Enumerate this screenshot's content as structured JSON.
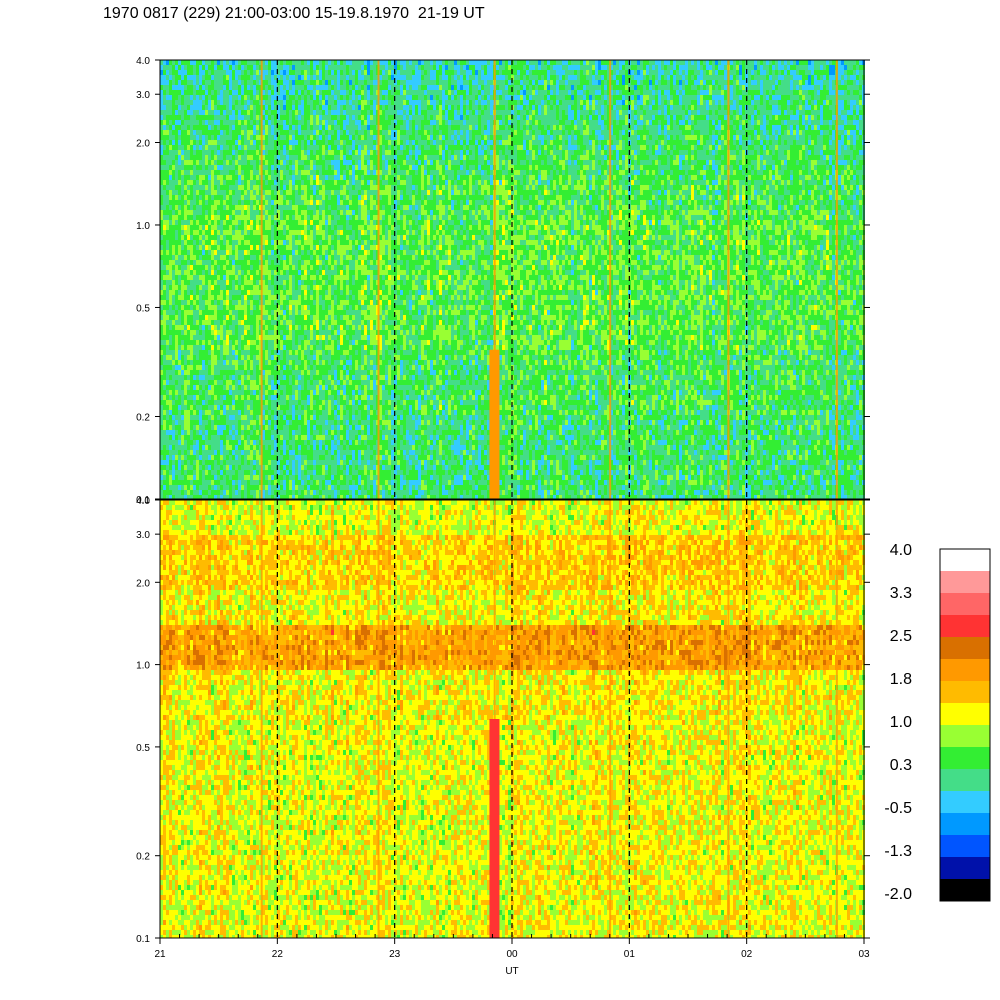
{
  "title": "1970 0817 (229) 21:00-03:00 15-19.8.1970  21-19 UT",
  "chart_data": {
    "type": "heatmap",
    "xlabel": "UT",
    "x_ticks": [
      "21",
      "22",
      "23",
      "00",
      "01",
      "02",
      "03"
    ],
    "x_range_hours": [
      21,
      27
    ],
    "dashed_hour_lines": [
      "22",
      "23",
      "00",
      "01",
      "02"
    ],
    "y_scale": "log",
    "y_ticks": [
      {
        "value": 0.1,
        "label": "0.1"
      },
      {
        "value": 0.2,
        "label": "0.2"
      },
      {
        "value": 0.5,
        "label": "0.5"
      },
      {
        "value": 1.0,
        "label": "1.0"
      },
      {
        "value": 2.0,
        "label": "2.0"
      },
      {
        "value": 3.0,
        "label": "3.0"
      },
      {
        "value": 4.0,
        "label": "4.0"
      }
    ],
    "ylim": [
      0.1,
      4.0
    ],
    "panels": [
      {
        "name": "upper",
        "dominant_level": "0.3 to 1.0",
        "grid": false
      },
      {
        "name": "lower",
        "dominant_level": "1.0 to 1.8",
        "grid": false
      }
    ],
    "colorbar": {
      "labels": [
        "4.0",
        "3.3",
        "2.5",
        "1.8",
        "1.0",
        "0.3",
        "-0.5",
        "-1.3",
        "-2.0"
      ],
      "colors": [
        "#ffffff",
        "#ff9999",
        "#ff6666",
        "#ff3333",
        "#d97000",
        "#ff9900",
        "#ffbb00",
        "#ffff00",
        "#99ff33",
        "#33ee33",
        "#44dd88",
        "#33ccff",
        "#0099ff",
        "#0055ff",
        "#0011aa",
        "#000000"
      ]
    }
  }
}
